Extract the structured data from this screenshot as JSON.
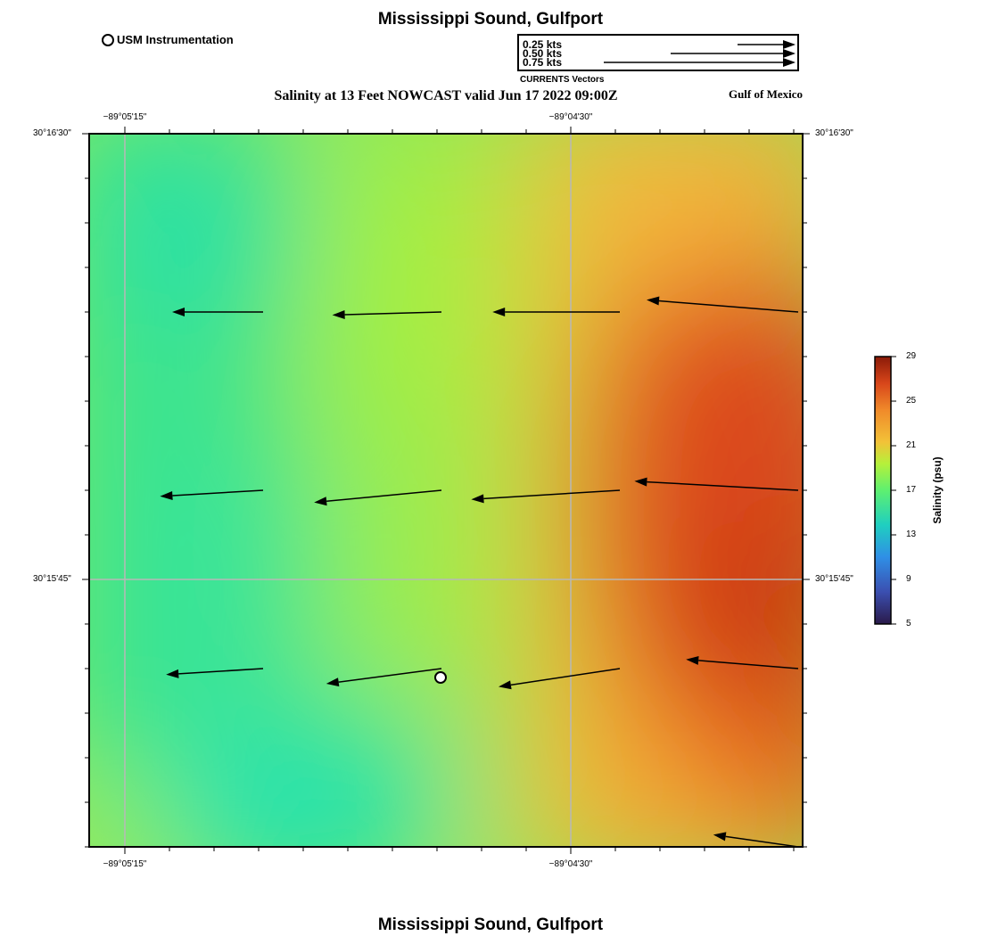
{
  "titles": {
    "top": "Mississippi Sound, Gulfport",
    "bottom": "Mississippi Sound, Gulfport",
    "subtitle": "Salinity at 13 Feet NOWCAST valid Jun 17 2022 09:00Z",
    "region_label": "Gulf of Mexico"
  },
  "legend": {
    "marker_label": "USM Instrumentation"
  },
  "vector_key": {
    "caption": "CURRENTS Vectors",
    "entries": [
      {
        "label": "0.25 kts",
        "speed": 0.25
      },
      {
        "label": "0.50 kts",
        "speed": 0.5
      },
      {
        "label": "0.75 kts",
        "speed": 0.75
      }
    ]
  },
  "map": {
    "longitude_labels": [
      "−89°05'15\"",
      "−89°04'30\""
    ],
    "latitude_labels": [
      "30°16'30\"",
      "30°15'45\""
    ],
    "currents": [
      {
        "row": 1,
        "col": 1,
        "u": -0.3,
        "v": 0.0
      },
      {
        "row": 1,
        "col": 2,
        "u": -0.36,
        "v": -0.01
      },
      {
        "row": 1,
        "col": 3,
        "u": -0.42,
        "v": 0.0
      },
      {
        "row": 1,
        "col": 4,
        "u": -0.5,
        "v": 0.04
      },
      {
        "row": 2,
        "col": 1,
        "u": -0.34,
        "v": -0.02
      },
      {
        "row": 2,
        "col": 2,
        "u": -0.42,
        "v": -0.04
      },
      {
        "row": 2,
        "col": 3,
        "u": -0.49,
        "v": -0.03
      },
      {
        "row": 2,
        "col": 4,
        "u": -0.54,
        "v": 0.03
      },
      {
        "row": 3,
        "col": 1,
        "u": -0.32,
        "v": -0.02
      },
      {
        "row": 3,
        "col": 2,
        "u": -0.38,
        "v": -0.05
      },
      {
        "row": 3,
        "col": 3,
        "u": -0.4,
        "v": -0.06
      },
      {
        "row": 3,
        "col": 4,
        "u": -0.37,
        "v": 0.03
      },
      {
        "row": 4,
        "col": 4,
        "u": -0.28,
        "v": 0.04
      }
    ],
    "instrument": {
      "row": 2.9,
      "col": 2.0
    }
  },
  "colorbar": {
    "title": "Salinity (psu)",
    "ticks": [
      "5",
      "9",
      "13",
      "17",
      "21",
      "25",
      "29"
    ],
    "min": 5,
    "max": 29
  }
}
